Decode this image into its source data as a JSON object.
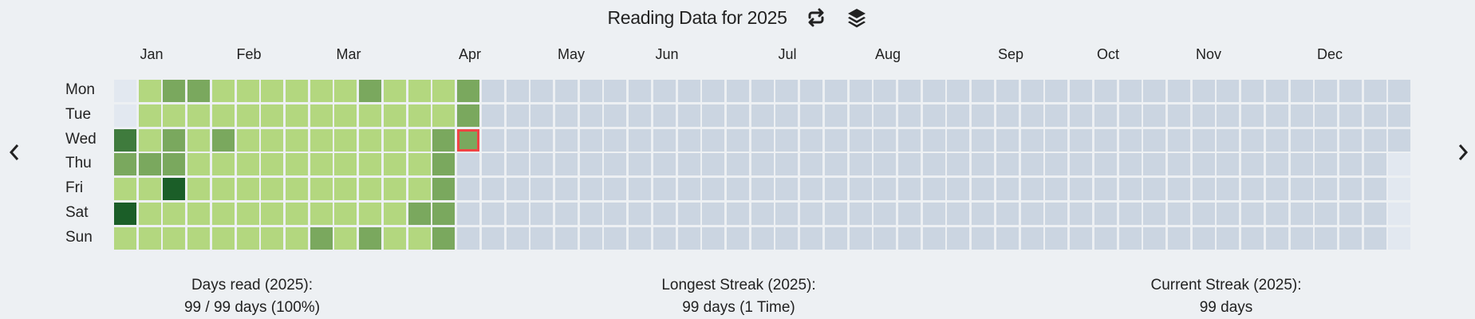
{
  "header": {
    "title": "Reading Data for 2025",
    "icons": [
      "repeat-icon",
      "layers-icon"
    ]
  },
  "navigation": {
    "prev_icon": "chevron-left-icon",
    "next_icon": "chevron-right-icon"
  },
  "stats": [
    {
      "label": "Days read (2025):",
      "value": "99 / 99 days (100%)"
    },
    {
      "label": "Longest Streak (2025):",
      "value": "99 days (1 Time)"
    },
    {
      "label": "Current Streak (2025):",
      "value": "99 days"
    }
  ],
  "chart_data": {
    "type": "heatmap",
    "title": "Reading Data for 2025",
    "year": 2025,
    "start_date": "2025-01-01",
    "x_labels": [
      "Jan",
      "Feb",
      "Mar",
      "Apr",
      "May",
      "Jun",
      "Jul",
      "Aug",
      "Sep",
      "Oct",
      "Nov",
      "Dec"
    ],
    "y_labels": [
      "Mon",
      "Tue",
      "Wed",
      "Thu",
      "Fri",
      "Sat",
      "Sun"
    ],
    "levels_by_day": [
      3,
      2,
      1,
      4,
      1,
      1,
      1,
      1,
      2,
      1,
      1,
      1,
      2,
      1,
      2,
      2,
      4,
      1,
      1,
      2,
      1,
      1,
      1,
      1,
      1,
      1,
      1,
      1,
      2,
      1,
      1,
      1,
      1,
      1,
      1,
      1,
      1,
      1,
      1,
      1,
      1,
      1,
      1,
      1,
      1,
      1,
      1,
      1,
      1,
      1,
      1,
      1,
      1,
      1,
      1,
      1,
      1,
      1,
      1,
      1,
      2,
      1,
      1,
      1,
      1,
      1,
      1,
      1,
      2,
      1,
      1,
      1,
      1,
      1,
      2,
      1,
      1,
      1,
      1,
      1,
      1,
      1,
      1,
      1,
      1,
      1,
      1,
      2,
      1,
      1,
      1,
      2,
      2,
      2,
      2,
      2,
      2,
      2,
      2
    ],
    "highlighted_date": "2025-04-09",
    "colors": {
      "outside_year": "#e2e8f0",
      "future": "#cbd5e1",
      "level_1": "#b3d77f",
      "level_2": "#7aa85e",
      "level_3": "#3f7b3d",
      "level_4": "#1b5e28",
      "highlight": "#ef4444"
    }
  }
}
